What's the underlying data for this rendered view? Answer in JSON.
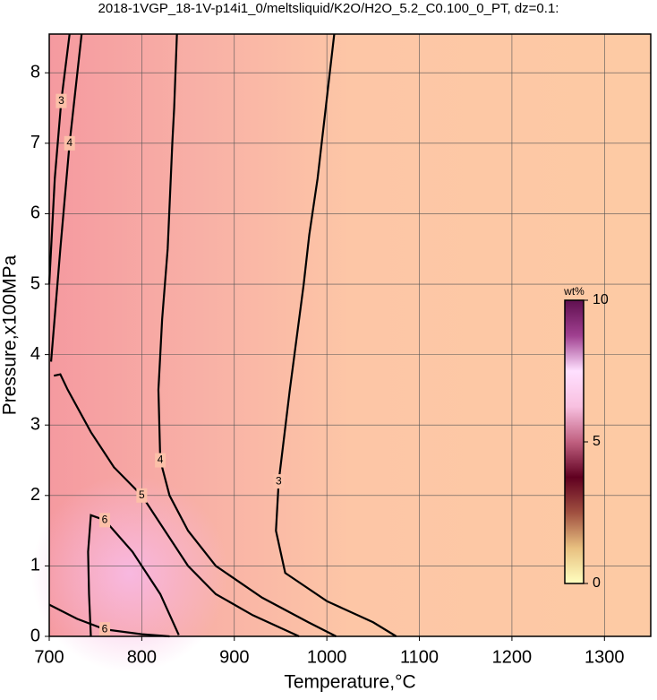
{
  "chart_data": {
    "type": "contour",
    "title": "2018-1VGP_18-1V-p14i1_0/meltsliquid/K2O/H2O_5.2_C0.100_0_PT, dz=0.1:",
    "x_label": "Temperature,°C",
    "y_label": "Pressure,x100MPa",
    "xlim": [
      700,
      1350
    ],
    "ylim": [
      0,
      8.55
    ],
    "xticks": [
      700,
      800,
      900,
      1000,
      1100,
      1200,
      1300
    ],
    "yticks": [
      0,
      1,
      2,
      3,
      4,
      5,
      6,
      7,
      8
    ],
    "grid": true,
    "line_color": "#000000",
    "contours": [
      {
        "level": 3,
        "x": [
          1008,
          990,
          981,
          975,
          960,
          948,
          945,
          955,
          1000,
          1050,
          1075
        ],
        "y": [
          8.55,
          6.5,
          5.7,
          5.0,
          3.5,
          2.2,
          1.5,
          0.9,
          0.5,
          0.2,
          0
        ]
      },
      {
        "level": 4,
        "x": [
          838,
          835,
          833,
          828,
          822,
          818,
          820,
          830,
          850,
          880,
          930,
          980,
          1010
        ],
        "y": [
          8.55,
          7.5,
          7.0,
          5.5,
          4.5,
          3.5,
          2.5,
          2.0,
          1.5,
          1.0,
          0.55,
          0.2,
          0
        ]
      },
      {
        "level": 5,
        "x": [
          705,
          712,
          720,
          745,
          770,
          800,
          820,
          850,
          880,
          920,
          970
        ],
        "y": [
          3.7,
          3.72,
          3.5,
          2.9,
          2.4,
          2.0,
          1.6,
          1.0,
          0.6,
          0.3,
          0
        ]
      },
      {
        "level": 6,
        "x": [
          745,
          743,
          742,
          745,
          760,
          790,
          820,
          840
        ],
        "y": [
          0,
          0.6,
          1.2,
          1.72,
          1.65,
          1.2,
          0.6,
          0.02
        ]
      },
      {
        "level": 6,
        "x": [
          700,
          730,
          760,
          800,
          830
        ],
        "y": [
          0.45,
          0.25,
          0.1,
          0.03,
          0
        ]
      },
      {
        "level": 3,
        "x": [
          700,
          706,
          713,
          722
        ],
        "y": [
          5.0,
          6.5,
          7.6,
          8.55
        ]
      },
      {
        "level": 4,
        "x": [
          702,
          712,
          722,
          735
        ],
        "y": [
          3.9,
          5.5,
          7.0,
          8.55
        ]
      }
    ],
    "colorbar": {
      "label": "wt%",
      "lim": [
        0,
        10
      ],
      "ticks": [
        0,
        5,
        10
      ],
      "colors": [
        "#ffffc0",
        "#e8c080",
        "#a05040",
        "#600020",
        "#c06080",
        "#f8c0e0",
        "#ffe0ff",
        "#a04090",
        "#601050"
      ]
    }
  }
}
